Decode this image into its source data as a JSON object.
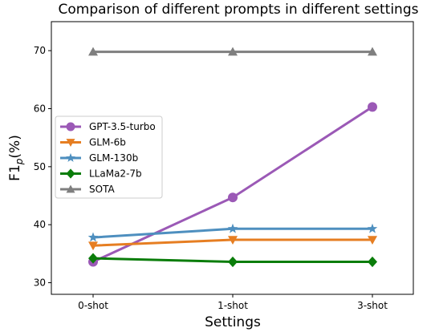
{
  "chart_data": {
    "type": "line",
    "title": "Comparison of different prompts in different settings",
    "xlabel": "Settings",
    "ylabel_main": "F1",
    "ylabel_sub": "p",
    "ylabel_suffix": "(%)",
    "categories": [
      "0-shot",
      "1-shot",
      "3-shot"
    ],
    "ylim": [
      28,
      75
    ],
    "yticks": [
      30,
      40,
      50,
      60,
      70
    ],
    "grid": false,
    "legend_position": "center-left",
    "series": [
      {
        "name": "GPT-3.5-turbo",
        "values": [
          33.6,
          44.7,
          60.3
        ],
        "color": "#9b59b6",
        "marker": "circle"
      },
      {
        "name": "GLM-6b",
        "values": [
          36.4,
          37.4,
          37.4
        ],
        "color": "#e67e22",
        "marker": "triangle-down"
      },
      {
        "name": "GLM-130b",
        "values": [
          37.8,
          39.3,
          39.3
        ],
        "color": "#4e8fbf",
        "marker": "star"
      },
      {
        "name": "LLaMa2-7b",
        "values": [
          34.2,
          33.6,
          33.6
        ],
        "color": "#0a7d0a",
        "marker": "diamond"
      },
      {
        "name": "SOTA",
        "values": [
          69.8,
          69.8,
          69.8
        ],
        "color": "#7f7f7f",
        "marker": "triangle-up"
      }
    ]
  }
}
